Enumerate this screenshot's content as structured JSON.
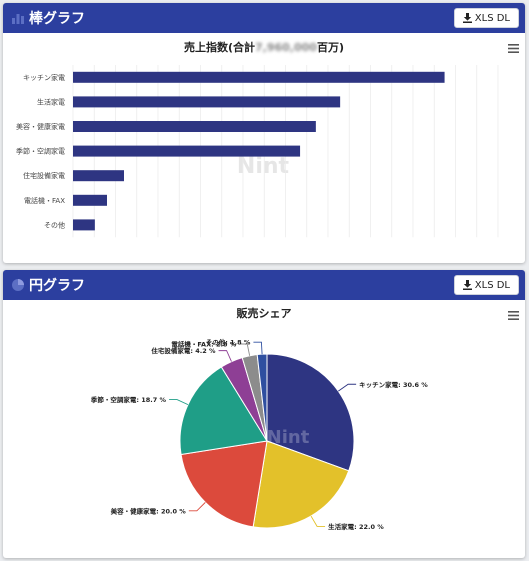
{
  "bar_panel": {
    "title": "棒グラフ",
    "xls_button": "XLS DL",
    "chart_title_prefix": "売上指数(合計",
    "chart_title_hidden": "7,960,000",
    "chart_title_suffix": "百万)",
    "watermark": "Nint"
  },
  "pie_panel": {
    "title": "円グラフ",
    "xls_button": "XLS DL",
    "chart_title": "販売シェア",
    "watermark": "Nint"
  },
  "icons": {
    "header_bar": "bar-chart-icon",
    "header_pie": "pie-chart-icon",
    "download": "download-icon",
    "menu": "hamburger-menu-icon"
  },
  "colors": {
    "header": "#2c3f9f",
    "bar": "#2e3582"
  },
  "chart_data": [
    {
      "type": "bar",
      "orientation": "horizontal",
      "categories": [
        "キッチン家電",
        "生活家電",
        "美容・健康家電",
        "季節・空調家電",
        "住宅設備家電",
        "電話機・FAX",
        "その他"
      ],
      "values": [
        30.6,
        22.0,
        20.0,
        18.7,
        4.2,
        2.8,
        1.8
      ],
      "xlim": [
        0,
        35
      ],
      "grid": true,
      "legend": "none"
    },
    {
      "type": "pie",
      "labels": [
        "キッチン家電",
        "生活家電",
        "美容・健康家電",
        "季節・空調家電",
        "住宅設備家電",
        "電話機・FAX",
        "その他"
      ],
      "values": [
        30.6,
        22.0,
        20.0,
        18.7,
        4.2,
        2.8,
        1.8
      ],
      "display": [
        "キッチン家電: 30.6 %",
        "生活家電: 22.0 %",
        "美容・健康家電: 20.0 %",
        "季節・空調家電: 18.7 %",
        "住宅設備家電: 4.2 %",
        "電話機・FAX: 2.8 %",
        "その他: 1.8 %"
      ],
      "colors": [
        "#2e3582",
        "#e3c12a",
        "#dc4a3c",
        "#1f9e87",
        "#8e3f95",
        "#8c8c8c",
        "#2f4fa0"
      ],
      "legend": "none"
    }
  ]
}
